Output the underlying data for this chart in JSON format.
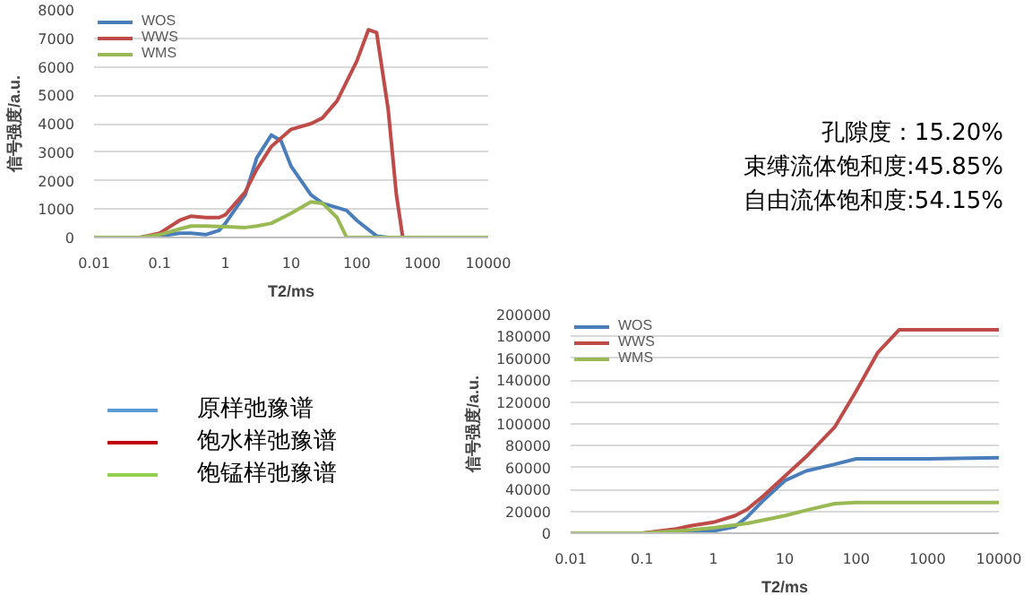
{
  "chart_data": [
    {
      "type": "line",
      "xlabel": "T2/ms",
      "ylabel": "信号强度/a.u.",
      "log": "x",
      "xlim": [
        0.01,
        10000
      ],
      "xticks": [
        0.01,
        0.1,
        1,
        10,
        100,
        1000,
        10000
      ],
      "ylim": [
        0,
        8000
      ],
      "yticks": [
        0,
        1000,
        2000,
        3000,
        4000,
        5000,
        6000,
        7000,
        8000
      ],
      "grid": "y",
      "legend": "top left",
      "series": [
        {
          "name": "WOS",
          "color": "#4a7ebb",
          "x": [
            0.01,
            0.05,
            0.1,
            0.2,
            0.3,
            0.5,
            0.8,
            1,
            2,
            3,
            5,
            7,
            10,
            20,
            30,
            50,
            70,
            100,
            200,
            300,
            10000
          ],
          "values": [
            0,
            0,
            50,
            150,
            150,
            100,
            250,
            500,
            1500,
            2800,
            3600,
            3400,
            2500,
            1500,
            1200,
            1050,
            950,
            600,
            50,
            0,
            0
          ]
        },
        {
          "name": "WWS",
          "color": "#be4b48",
          "x": [
            0.01,
            0.05,
            0.1,
            0.2,
            0.3,
            0.5,
            0.8,
            1,
            2,
            3,
            5,
            10,
            20,
            30,
            50,
            100,
            150,
            200,
            300,
            400,
            500,
            10000
          ],
          "values": [
            0,
            0,
            150,
            600,
            750,
            700,
            700,
            800,
            1600,
            2400,
            3200,
            3800,
            4000,
            4200,
            4800,
            6200,
            7300,
            7200,
            4500,
            1500,
            0,
            0
          ]
        },
        {
          "name": "WMS",
          "color": "#98b954",
          "x": [
            0.01,
            0.05,
            0.1,
            0.2,
            0.3,
            0.5,
            1,
            2,
            3,
            5,
            10,
            20,
            30,
            50,
            70,
            10000
          ],
          "values": [
            0,
            0,
            100,
            300,
            400,
            400,
            380,
            350,
            400,
            500,
            850,
            1250,
            1200,
            700,
            0,
            0
          ]
        }
      ]
    },
    {
      "type": "other",
      "annotations": [
        "孔隙度：15.20%",
        "束缚流体饱和度:45.85%",
        "自由流体饱和度:54.15%"
      ]
    },
    {
      "type": "other",
      "series": [
        {
          "name": "原样弛豫谱",
          "color": "#5b9bd5"
        },
        {
          "name": "饱水样弛豫谱",
          "color": "#c00000"
        },
        {
          "name": "饱锰样弛豫谱",
          "color": "#92d050"
        }
      ]
    },
    {
      "type": "line",
      "xlabel": "T2/ms",
      "ylabel": "信号强度/a.u.",
      "log": "x",
      "xlim": [
        0.01,
        10000
      ],
      "xticks": [
        0.01,
        0.1,
        1,
        10,
        100,
        1000,
        10000
      ],
      "ylim": [
        0,
        200000
      ],
      "yticks": [
        0,
        20000,
        40000,
        60000,
        80000,
        100000,
        120000,
        140000,
        160000,
        180000,
        200000
      ],
      "grid": "y",
      "legend": "top left",
      "series": [
        {
          "name": "WOS",
          "color": "#4a7ebb",
          "x": [
            0.01,
            0.1,
            0.5,
            1,
            2,
            3,
            5,
            10,
            20,
            50,
            100,
            1000,
            10000
          ],
          "values": [
            0,
            0,
            1000,
            2000,
            6000,
            15000,
            30000,
            48000,
            57000,
            63000,
            68000,
            68000,
            69000
          ]
        },
        {
          "name": "WWS",
          "color": "#be4b48",
          "x": [
            0.01,
            0.1,
            0.3,
            0.5,
            1,
            2,
            3,
            5,
            10,
            20,
            50,
            100,
            200,
            400,
            10000
          ],
          "values": [
            0,
            0,
            4000,
            7000,
            10000,
            16000,
            22000,
            34000,
            52000,
            70000,
            97000,
            130000,
            165000,
            186000,
            186000
          ]
        },
        {
          "name": "WMS",
          "color": "#98b954",
          "x": [
            0.01,
            0.1,
            0.5,
            1,
            3,
            10,
            20,
            50,
            100,
            10000
          ],
          "values": [
            0,
            0,
            3000,
            5000,
            9000,
            16000,
            21000,
            27000,
            28000,
            28000
          ]
        }
      ]
    }
  ]
}
